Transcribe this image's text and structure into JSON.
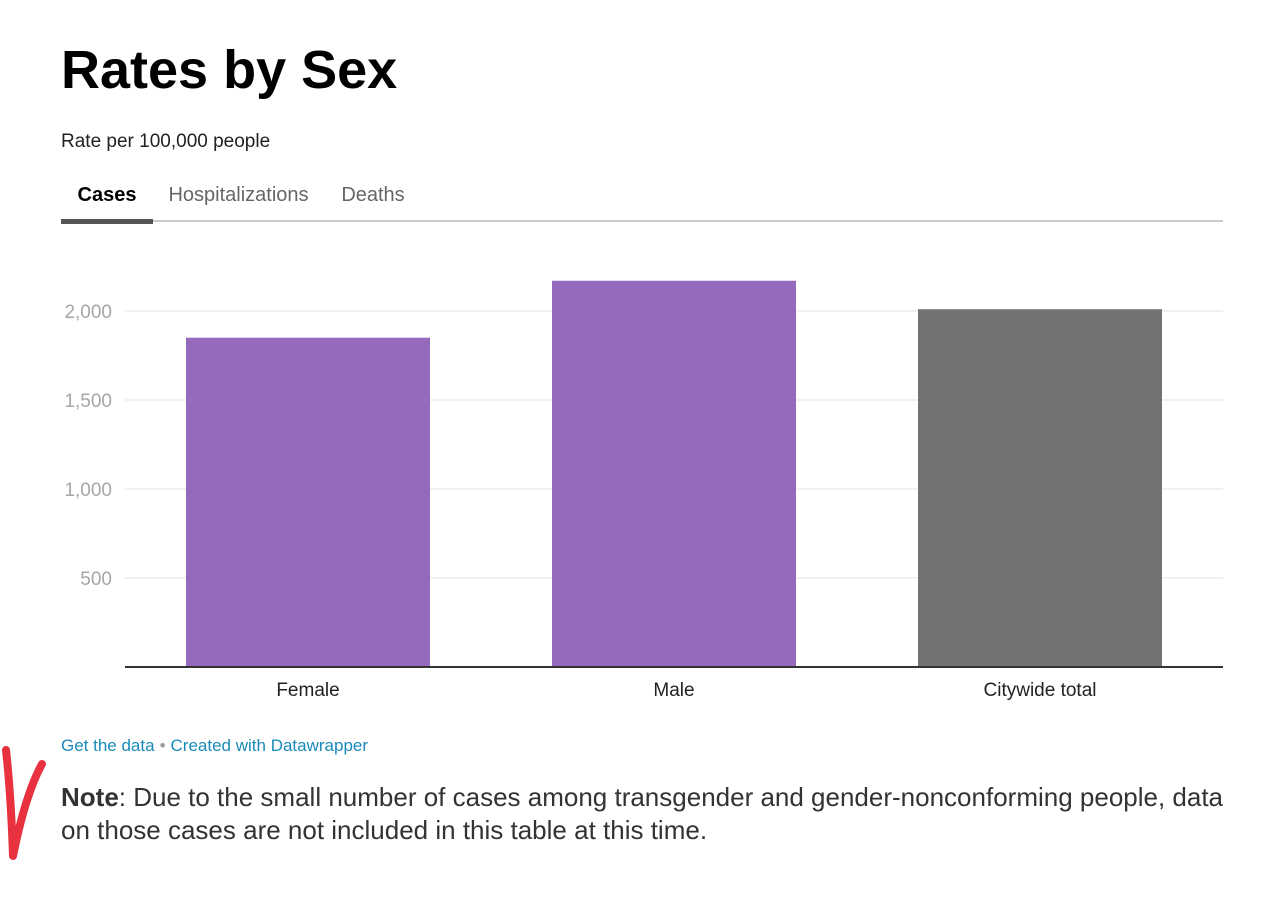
{
  "title": "Rates by Sex",
  "subtitle": "Rate per 100,000 people",
  "tabs": [
    {
      "label": "Cases",
      "active": true
    },
    {
      "label": "Hospitalizations",
      "active": false
    },
    {
      "label": "Deaths",
      "active": false
    }
  ],
  "colors": {
    "sex_bar": "#9569bb",
    "total_bar": "#737373",
    "grid": "#e2e2e2",
    "axis": "#333333",
    "tick_label": "#a6a6a6",
    "link": "#1a8bb8",
    "mark": "#e8323f"
  },
  "chart_data": {
    "type": "bar",
    "categories": [
      "Female",
      "Male",
      "Citywide total"
    ],
    "values": [
      1850,
      2170,
      2010
    ],
    "yticks": [
      500,
      1000,
      1500,
      2000
    ],
    "ytick_labels": [
      "500",
      "1,000",
      "1,500",
      "2,000"
    ],
    "ylim": [
      0,
      2250
    ],
    "grid": true,
    "title": "",
    "xlabel": "",
    "ylabel": ""
  },
  "footer": {
    "get_data": "Get the data",
    "separator": "•",
    "created_with": "Created with Datawrapper"
  },
  "note": {
    "label": "Note",
    "text": ": Due to the small number of cases among transgender and gender-nonconforming people, data on those cases are not included in this table at this time."
  }
}
